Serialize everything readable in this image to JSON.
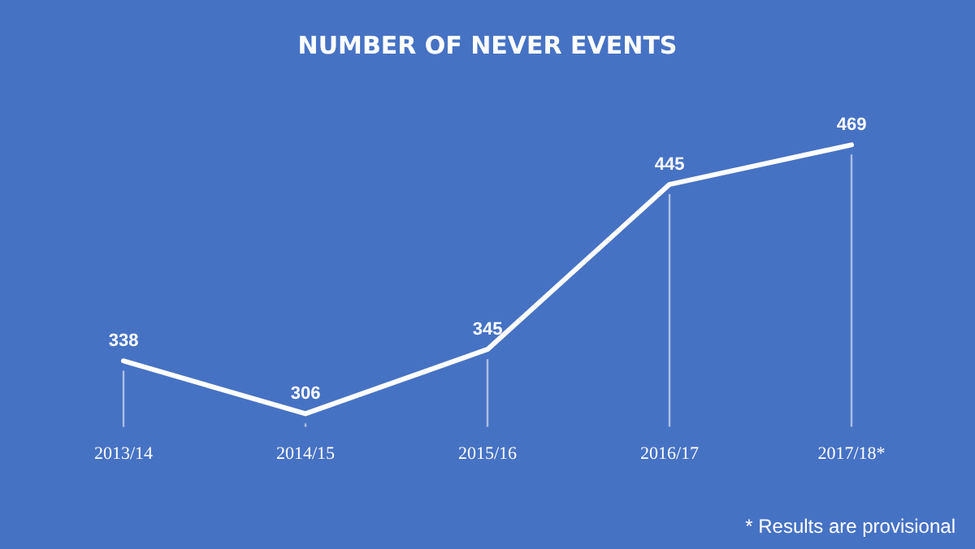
{
  "chart_data": {
    "type": "line",
    "title": "NUMBER OF NEVER EVENTS",
    "categories": [
      "2013/14",
      "2014/15",
      "2015/16",
      "2016/17",
      "2017/18*"
    ],
    "series": [
      {
        "color": "#ffffff",
        "values": [
          338,
          306,
          345,
          445,
          469
        ]
      }
    ],
    "data_labels": true,
    "marker": "none",
    "line_style": "solid",
    "grid": "x",
    "legend": false,
    "tick_labels": "x",
    "annotations": [
      "* Results are provisional"
    ]
  }
}
